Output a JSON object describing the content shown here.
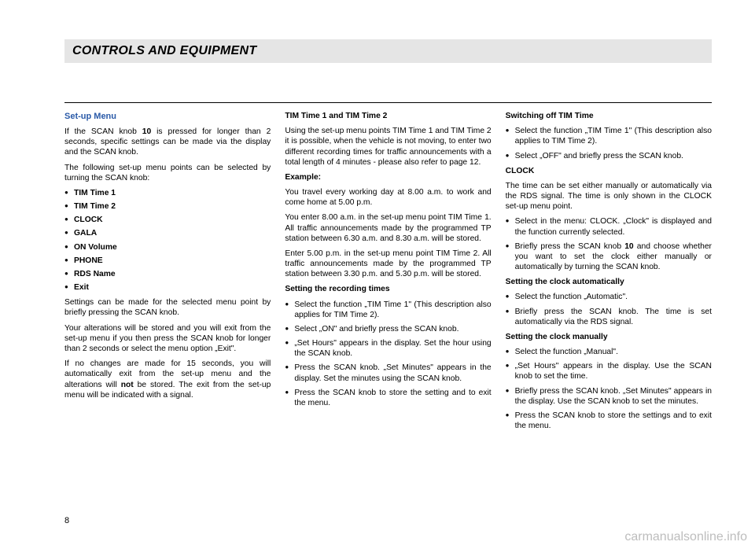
{
  "header": {
    "title": "CONTROLS AND EQUIPMENT"
  },
  "col1": {
    "section_title": "Set-up Menu",
    "p1a": "If the SCAN knob ",
    "p1b": "10",
    "p1c": " is pressed for longer than 2 seconds, specific settings can be made via the display and the SCAN knob.",
    "p2": "The following set-up menu points can be selected by turning the SCAN knob:",
    "menu": [
      "TIM Time 1",
      "TIM Time 2",
      "CLOCK",
      "GALA",
      "ON Volume",
      "PHONE",
      "RDS Name",
      "Exit"
    ],
    "p3": "Settings can be made for the selected menu point by briefly pressing the SCAN knob.",
    "p4": "Your alterations will be stored and you will exit from the set-up menu if you then press the SCAN knob for longer than 2 seconds or select the menu option „Exit\".",
    "p5a": "If no changes are made for 15 seconds, you will automatically exit from the set-up menu and the alterations will ",
    "p5b": "not",
    "p5c": " be stored. The exit from the set-up menu will be indicated with a signal."
  },
  "col2": {
    "h1": "TIM Time 1 and TIM Time 2",
    "p1": "Using the set-up menu points TIM Time 1 and TIM Time 2 it is possible, when the vehicle is not moving, to enter two different recording times for traffic announcements with a total length of 4 minutes - please also refer to page 12.",
    "h2": "Example:",
    "p2": "You travel every working day at 8.00 a.m. to work and come home at 5.00 p.m.",
    "p3": "You enter 8.00 a.m. in the set-up menu point TIM Time 1. All traffic announcements made by the programmed TP station between 6.30 a.m. and 8.30 a.m. will be stored.",
    "p4": "Enter 5.00 p.m. in the set-up menu point TIM Time 2. All traffic announcements made by the programmed TP station between 3.30 p.m. and 5.30 p.m. will be stored.",
    "h3": "Setting the recording times",
    "b1": "Select the function „TIM Time 1\" (This description also applies for TIM Time 2).",
    "b2": "Select „ON\" and briefly press the SCAN knob.",
    "b3": "„Set Hours\" appears in the display. Set the hour using the SCAN knob.",
    "b4": "Press the SCAN knob. „Set Minutes\" appears in the display. Set the minutes using the SCAN knob.",
    "b5": "Press the SCAN knob to store the setting and to exit the menu."
  },
  "col3": {
    "h1": "Switching off TIM Time",
    "b1": "Select the function „TIM Time 1\" (This description also applies to TIM Time 2).",
    "b2": "Select „OFF\" and briefly press the SCAN knob.",
    "h2": "CLOCK",
    "p1": "The time can be set either manually or automatically via the RDS signal. The time is only shown in the CLOCK set-up menu point.",
    "b3": "Select in the menu: CLOCK. „Clock\" is displayed and the function currently selected.",
    "b4a": "Briefly press the SCAN knob ",
    "b4b": "10",
    "b4c": " and choose whether you want to set the clock either manually or automatically by turning the SCAN knob.",
    "h3": "Setting the clock automatically",
    "b5": "Select the function „Automatic\".",
    "b6": "Briefly press the SCAN knob. The time is set automatically via the RDS signal.",
    "h4": "Setting the clock manually",
    "b7": "Select the function „Manual\".",
    "b8": "„Set Hours\" appears in the display. Use the SCAN knob to set the time.",
    "b9": "Briefly press the SCAN knob. „Set Minutes\" appears in the display. Use the SCAN knob to set the minutes.",
    "b10": "Press the SCAN knob to store the settings and to exit the menu."
  },
  "page_number": "8",
  "watermark": "carmanualsonline.info"
}
